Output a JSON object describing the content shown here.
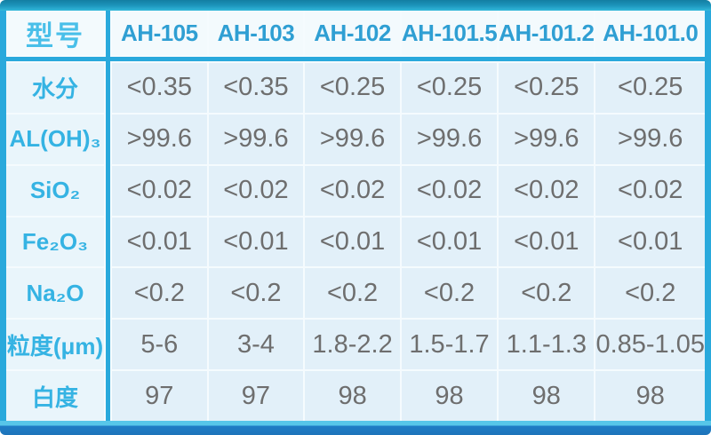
{
  "table": {
    "header": [
      "型号",
      "AH-105",
      "AH-103",
      "AH-102",
      "AH-101.5",
      "AH-101.2",
      "AH-101.0"
    ],
    "rows": [
      {
        "label": "水分",
        "cells": [
          "<0.35",
          "<0.35",
          "<0.25",
          "<0.25",
          "<0.25",
          "<0.25"
        ]
      },
      {
        "label": "AL(OH)₃",
        "cells": [
          ">99.6",
          ">99.6",
          ">99.6",
          ">99.6",
          ">99.6",
          ">99.6"
        ]
      },
      {
        "label": "SiO₂",
        "cells": [
          "<0.02",
          "<0.02",
          "<0.02",
          "<0.02",
          "<0.02",
          "<0.02"
        ]
      },
      {
        "label": "Fe₂O₃",
        "cells": [
          "<0.01",
          "<0.01",
          "<0.01",
          "<0.01",
          "<0.01",
          "<0.01"
        ]
      },
      {
        "label": "Na₂O",
        "cells": [
          "<0.2",
          "<0.2",
          "<0.2",
          "<0.2",
          "<0.2",
          "<0.2"
        ]
      },
      {
        "label": "粒度(μm)",
        "cells": [
          "5-6",
          "3-4",
          "1.8-2.2",
          "1.5-1.7",
          "1.1-1.3",
          "0.85-1.05"
        ]
      },
      {
        "label": "白度",
        "cells": [
          "97",
          "97",
          "98",
          "98",
          "98",
          "98"
        ]
      }
    ]
  },
  "colors": {
    "accent_cyan": "#29a9dc",
    "header_text": "#2f9fd3",
    "label_text": "#35b3e3",
    "value_text": "#6e6e6e",
    "top_bar": "#1d96bd",
    "bottom_bar": "#1f7dc5"
  },
  "chart_data": {
    "type": "table",
    "columns": [
      "型号",
      "AH-105",
      "AH-103",
      "AH-102",
      "AH-101.5",
      "AH-101.2",
      "AH-101.0"
    ],
    "rows": [
      [
        "水分",
        "<0.35",
        "<0.35",
        "<0.25",
        "<0.25",
        "<0.25",
        "<0.25"
      ],
      [
        "AL(OH)₃",
        ">99.6",
        ">99.6",
        ">99.6",
        ">99.6",
        ">99.6",
        ">99.6"
      ],
      [
        "SiO₂",
        "<0.02",
        "<0.02",
        "<0.02",
        "<0.02",
        "<0.02",
        "<0.02"
      ],
      [
        "Fe₂O₃",
        "<0.01",
        "<0.01",
        "<0.01",
        "<0.01",
        "<0.01",
        "<0.01"
      ],
      [
        "Na₂O",
        "<0.2",
        "<0.2",
        "<0.2",
        "<0.2",
        "<0.2",
        "<0.2"
      ],
      [
        "粒度(μm)",
        "5-6",
        "3-4",
        "1.8-2.2",
        "1.5-1.7",
        "1.1-1.3",
        "0.85-1.05"
      ],
      [
        "白度",
        "97",
        "97",
        "98",
        "98",
        "98",
        "98"
      ]
    ],
    "legend_position": "none",
    "grid": true
  }
}
